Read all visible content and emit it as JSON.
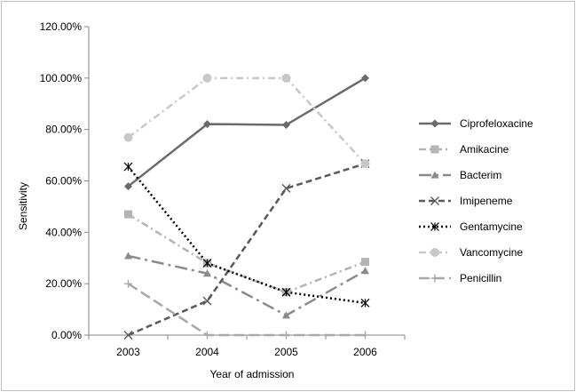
{
  "chart_data": {
    "type": "line",
    "title": "",
    "xlabel": "Year of admission",
    "ylabel": "Sensitivity",
    "categories": [
      "2003",
      "2004",
      "2005",
      "2006"
    ],
    "ylim": [
      0,
      120
    ],
    "yticks": [
      0,
      20,
      40,
      60,
      80,
      100,
      120
    ],
    "ytick_labels": [
      "0.00%",
      "20.00%",
      "40.00%",
      "60.00%",
      "80.00%",
      "100.00%",
      "120.00%"
    ],
    "grid": false,
    "legend_position": "right",
    "series": [
      {
        "name": "Ciprofeloxacine",
        "values": [
          57.9,
          82.1,
          81.8,
          100
        ],
        "color": "#6b6b6b",
        "dash": "solid",
        "marker": "diamond"
      },
      {
        "name": "Amikacine",
        "values": [
          47.0,
          28.0,
          16.7,
          28.5
        ],
        "color": "#b4b4b4",
        "dash": "dashdot",
        "marker": "square"
      },
      {
        "name": "Bacterim",
        "values": [
          30.8,
          24.0,
          7.7,
          25.0
        ],
        "color": "#8a8a8a",
        "dash": "longdashdot",
        "marker": "triangle"
      },
      {
        "name": "Imipeneme",
        "values": [
          0,
          13.3,
          57.1,
          66.7
        ],
        "color": "#5a5a5a",
        "dash": "dash",
        "marker": "x"
      },
      {
        "name": "Gentamycine",
        "values": [
          65.5,
          28.0,
          16.7,
          12.5
        ],
        "color": "#000000",
        "dash": "dot",
        "marker": "star"
      },
      {
        "name": "Vancomycine",
        "values": [
          76.9,
          100,
          100,
          66.7
        ],
        "color": "#c8c8c8",
        "dash": "dashdot",
        "marker": "circle"
      },
      {
        "name": "Penicillin",
        "values": [
          20.0,
          0,
          0,
          0
        ],
        "color": "#a8a8a8",
        "dash": "longdash",
        "marker": "plus"
      }
    ]
  }
}
